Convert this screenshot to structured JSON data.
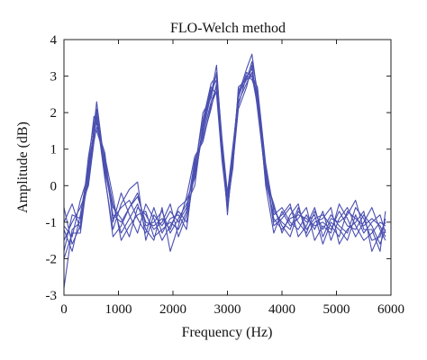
{
  "chart_data": {
    "type": "line",
    "title": "FLO-Welch method",
    "xlabel": "Frequency (Hz)",
    "ylabel": "Amplitude (dB)",
    "xlim": [
      0,
      6000
    ],
    "ylim": [
      -3,
      4
    ],
    "xticks": [
      0,
      1000,
      2000,
      3000,
      4000,
      5000,
      6000
    ],
    "yticks": [
      -3,
      -2,
      -1,
      0,
      1,
      2,
      3,
      4
    ],
    "grid": false,
    "legend": "none",
    "line_color": "#4a4fb0",
    "x": [
      0,
      150,
      300,
      450,
      550,
      600,
      750,
      900,
      1050,
      1200,
      1350,
      1500,
      1650,
      1800,
      1950,
      2100,
      2250,
      2400,
      2550,
      2700,
      2800,
      2900,
      3000,
      3100,
      3200,
      3350,
      3450,
      3550,
      3700,
      3850,
      4000,
      4150,
      4300,
      4450,
      4600,
      4750,
      4900,
      5050,
      5200,
      5350,
      5500,
      5650,
      5800,
      5900
    ],
    "series": [
      {
        "values": [
          -2.8,
          -1.2,
          -1.0,
          0.2,
          1.6,
          2.3,
          0.5,
          -0.8,
          -1.0,
          -0.6,
          -0.3,
          -1.0,
          -1.1,
          -0.9,
          -1.2,
          -0.6,
          -0.4,
          0.2,
          1.5,
          2.5,
          3.3,
          1.0,
          -0.6,
          0.8,
          2.5,
          3.2,
          3.6,
          2.5,
          0.5,
          -1.0,
          -0.8,
          -0.5,
          -1.4,
          -1.1,
          -0.6,
          -1.4,
          -0.9,
          -1.0,
          -0.8,
          -0.4,
          -1.2,
          -1.2,
          -1.8,
          -0.7
        ]
      },
      {
        "values": [
          -1.2,
          -1.8,
          -0.8,
          0.5,
          1.5,
          1.9,
          0.2,
          -1.2,
          -0.5,
          -0.1,
          0.1,
          -1.5,
          -0.8,
          -1.1,
          -0.7,
          -1.0,
          -0.6,
          0.5,
          1.8,
          2.8,
          3.0,
          1.2,
          -0.3,
          1.0,
          2.2,
          3.0,
          3.2,
          2.4,
          0.2,
          -0.5,
          -1.3,
          -0.8,
          -0.5,
          -1.4,
          -1.0,
          -0.9,
          -0.6,
          -1.6,
          -1.2,
          -1.0,
          -0.7,
          -1.8,
          -1.3,
          -1.0
        ]
      },
      {
        "values": [
          -1.0,
          -0.5,
          -1.2,
          0.8,
          1.7,
          2.0,
          0.6,
          -0.5,
          -1.3,
          -0.9,
          -0.5,
          -1.2,
          -1.5,
          -0.6,
          -1.8,
          -1.1,
          -0.3,
          0.8,
          1.2,
          2.2,
          2.6,
          0.8,
          -0.5,
          0.5,
          2.7,
          2.9,
          3.4,
          2.6,
          0.0,
          -1.3,
          -0.7,
          -1.1,
          -0.9,
          -0.6,
          -1.5,
          -1.1,
          -1.3,
          -0.5,
          -0.9,
          -1.4,
          -1.0,
          -0.6,
          -1.2,
          -1.5
        ]
      },
      {
        "values": [
          -1.5,
          -1.0,
          -0.6,
          0.0,
          1.2,
          1.6,
          0.9,
          -1.0,
          -0.2,
          -0.8,
          -1.3,
          -0.5,
          -0.9,
          -1.5,
          -1.1,
          -0.7,
          -1.0,
          0.4,
          2.0,
          2.4,
          3.1,
          1.3,
          -0.2,
          1.1,
          2.4,
          3.1,
          3.0,
          2.2,
          0.3,
          -0.6,
          -1.1,
          -1.4,
          -0.7,
          -1.0,
          -0.8,
          -1.6,
          -1.0,
          -1.2,
          -1.5,
          -0.8,
          -1.3,
          -1.0,
          -0.8,
          -1.3
        ]
      },
      {
        "values": [
          -1.1,
          -1.4,
          -0.4,
          0.3,
          1.4,
          1.8,
          0.4,
          -0.6,
          -0.9,
          -1.4,
          -0.6,
          -0.8,
          -1.2,
          -1.0,
          -0.5,
          -1.4,
          -0.8,
          0.3,
          1.6,
          2.6,
          2.9,
          0.9,
          -0.7,
          0.7,
          2.3,
          2.8,
          3.1,
          2.3,
          0.1,
          -0.8,
          -0.6,
          -1.0,
          -1.2,
          -0.8,
          -1.2,
          -0.7,
          -1.5,
          -0.9,
          -0.6,
          -1.1,
          -1.5,
          -1.3,
          -1.0,
          -1.1
        ]
      },
      {
        "values": [
          -0.6,
          -1.6,
          -1.1,
          0.6,
          1.9,
          1.7,
          0.7,
          -0.9,
          -0.6,
          -0.4,
          -0.9,
          -1.3,
          -0.6,
          -1.3,
          -0.9,
          -0.8,
          -1.2,
          0.6,
          1.4,
          2.3,
          2.7,
          1.1,
          -0.4,
          0.9,
          2.6,
          3.0,
          2.9,
          2.5,
          0.4,
          -1.1,
          -0.9,
          -0.6,
          -1.0,
          -1.3,
          -0.7,
          -1.2,
          -0.8,
          -1.1,
          -1.3,
          -0.6,
          -0.9,
          -1.5,
          -1.4,
          -0.9
        ]
      },
      {
        "values": [
          -1.8,
          -0.8,
          -0.9,
          0.1,
          1.3,
          2.1,
          0.3,
          -1.4,
          -1.1,
          -0.6,
          -0.2,
          -1.1,
          -1.0,
          -0.7,
          -1.3,
          -0.9,
          -0.5,
          0.0,
          1.7,
          2.7,
          2.5,
          0.7,
          -0.6,
          0.6,
          2.1,
          2.7,
          3.3,
          2.1,
          0.2,
          -0.9,
          -1.2,
          -0.9,
          -0.8,
          -0.9,
          -1.1,
          -1.0,
          -1.2,
          -0.7,
          -1.1,
          -1.2,
          -0.8,
          -1.1,
          -1.6,
          -1.2
        ]
      },
      {
        "values": [
          -2.0,
          -1.3,
          -1.3,
          0.4,
          1.5,
          1.5,
          0.8,
          -0.3,
          -1.5,
          -1.1,
          -0.8,
          -0.7,
          -1.4,
          -1.2,
          -1.0,
          -1.2,
          -0.7,
          0.7,
          1.3,
          2.1,
          2.8,
          1.2,
          -0.8,
          1.0,
          2.5,
          2.9,
          3.0,
          2.7,
          0.6,
          -0.7,
          -1.0,
          -1.2,
          -0.6,
          -1.2,
          -0.9,
          -0.8,
          -1.1,
          -1.4,
          -0.7,
          -0.9,
          -1.1,
          -0.9,
          -1.1,
          -1.4
        ]
      }
    ]
  }
}
